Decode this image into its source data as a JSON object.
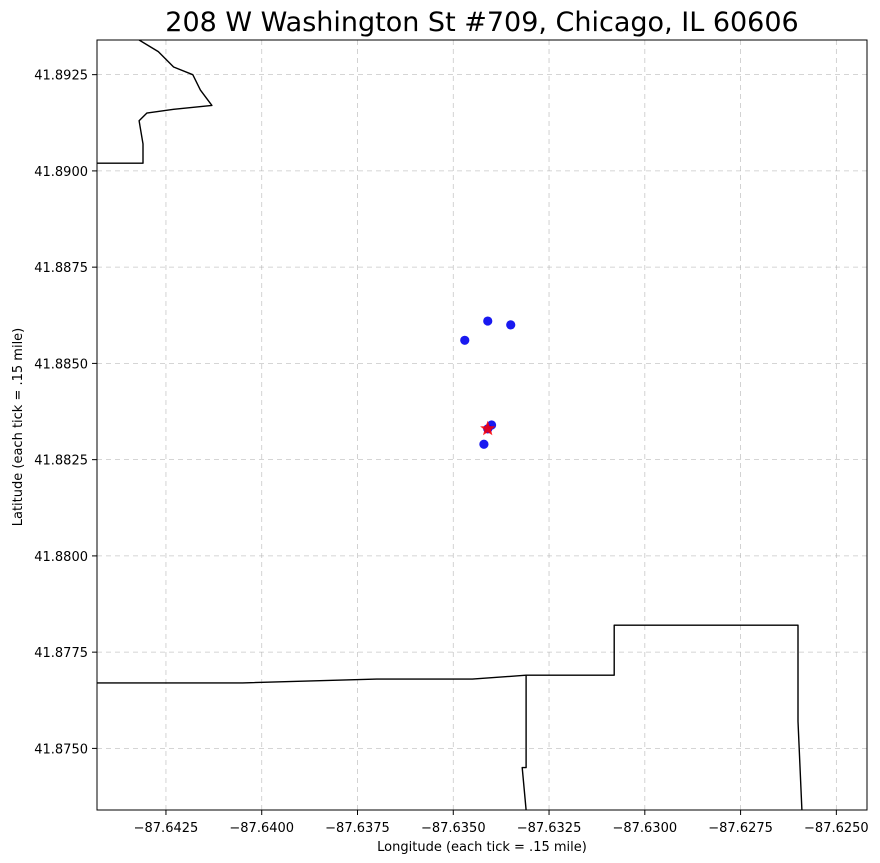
{
  "title": "208 W Washington St #709, Chicago, IL 60606",
  "xlabel": "Longitude (each tick = .15 mile)",
  "ylabel": "Latitude (each tick = .15 mile)",
  "colors": {
    "points": "#0000ee",
    "target": "#ff0000",
    "boundary": "#000000",
    "grid": "#b0b0b0"
  },
  "chart_data": {
    "type": "scatter",
    "xlim": [
      -87.6443,
      -87.6242
    ],
    "ylim": [
      41.8734,
      41.8934
    ],
    "grid": true,
    "x_ticks": [
      {
        "value": -87.6425,
        "label": "−87.6425"
      },
      {
        "value": -87.64,
        "label": "−87.6400"
      },
      {
        "value": -87.6375,
        "label": "−87.6375"
      },
      {
        "value": -87.635,
        "label": "−87.6350"
      },
      {
        "value": -87.6325,
        "label": "−87.6325"
      },
      {
        "value": -87.63,
        "label": "−87.6300"
      },
      {
        "value": -87.6275,
        "label": "−87.6275"
      },
      {
        "value": -87.625,
        "label": "−87.6250"
      }
    ],
    "y_ticks": [
      {
        "value": 41.875,
        "label": "41.8750"
      },
      {
        "value": 41.8775,
        "label": "41.8775"
      },
      {
        "value": 41.88,
        "label": "41.8800"
      },
      {
        "value": 41.8825,
        "label": "41.8825"
      },
      {
        "value": 41.885,
        "label": "41.8850"
      },
      {
        "value": 41.8875,
        "label": "41.8875"
      },
      {
        "value": 41.89,
        "label": "41.8900"
      },
      {
        "value": 41.8925,
        "label": "41.8925"
      }
    ],
    "points": [
      {
        "lon": -87.6341,
        "lat": 41.8861
      },
      {
        "lon": -87.6335,
        "lat": 41.886
      },
      {
        "lon": -87.6347,
        "lat": 41.8856
      },
      {
        "lon": -87.634,
        "lat": 41.8834
      },
      {
        "lon": -87.6341,
        "lat": 41.8833
      },
      {
        "lon": -87.6342,
        "lat": 41.8829
      }
    ],
    "target": {
      "lon": -87.6341,
      "lat": 41.8833
    },
    "boundaries": [
      [
        [
          -87.6432,
          41.8934
        ],
        [
          -87.6427,
          41.8931
        ],
        [
          -87.6423,
          41.8927
        ],
        [
          -87.6418,
          41.8925
        ],
        [
          -87.6416,
          41.8921
        ],
        [
          -87.6413,
          41.8917
        ],
        [
          -87.6423,
          41.8916
        ],
        [
          -87.643,
          41.8915
        ],
        [
          -87.6432,
          41.8913
        ],
        [
          -87.6431,
          41.8907
        ],
        [
          -87.6431,
          41.8902
        ],
        [
          -87.6443,
          41.8902
        ]
      ],
      [
        [
          -87.6443,
          41.8767
        ],
        [
          -87.6405,
          41.8767
        ],
        [
          -87.637,
          41.8768
        ],
        [
          -87.6345,
          41.8768
        ],
        [
          -87.6331,
          41.8769
        ],
        [
          -87.6308,
          41.8769
        ],
        [
          -87.6308,
          41.8782
        ],
        [
          -87.6276,
          41.8782
        ],
        [
          -87.6276,
          41.8782
        ],
        [
          -87.626,
          41.8782
        ],
        [
          -87.626,
          41.8757
        ],
        [
          -87.6259,
          41.8734
        ]
      ],
      [
        [
          -87.6331,
          41.8769
        ],
        [
          -87.6331,
          41.8755
        ],
        [
          -87.6331,
          41.8745
        ],
        [
          -87.6332,
          41.8745
        ],
        [
          -87.6331,
          41.8734
        ]
      ]
    ]
  }
}
